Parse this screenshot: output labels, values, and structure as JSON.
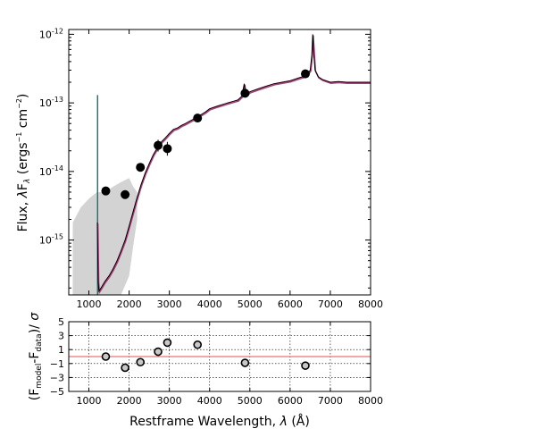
{
  "chart_data": [
    {
      "type": "line",
      "panel": "sed",
      "xlim": [
        500,
        8000
      ],
      "ylim_log10": [
        -15.8,
        -11.93
      ],
      "y_scale": "log",
      "xlabel": "",
      "ylabel": {
        "prefix": "Flux, ",
        "lambda": "λ",
        "F": "F",
        "sub": "λ",
        "units_open": " (ergs",
        "exp1": "−1",
        "cm": " cm",
        "exp2": "−2",
        "close": ")"
      },
      "x_ticks": [
        1000,
        2000,
        3000,
        4000,
        5000,
        6000,
        7000,
        8000
      ],
      "y_ticks": [
        {
          "base": "10",
          "exp": "-12",
          "log": -12
        },
        {
          "base": "10",
          "exp": "-13",
          "log": -13
        },
        {
          "base": "10",
          "exp": "-14",
          "log": -14
        },
        {
          "base": "10",
          "exp": "-15",
          "log": -15
        }
      ],
      "photometry": {
        "x": [
          1420,
          1900,
          2280,
          2720,
          2950,
          3700,
          4880,
          6380
        ],
        "y": [
          5.2e-15,
          4.6e-15,
          1.15e-14,
          2.4e-14,
          2.15e-14,
          6e-14,
          1.38e-13,
          2.65e-13
        ],
        "yerr_up": [
          0,
          0,
          0,
          5e-15,
          5.5e-15,
          0,
          0,
          0
        ],
        "yerr_down": [
          0,
          0,
          0,
          4.5e-15,
          4.5e-15,
          0,
          0,
          0
        ]
      },
      "model_spectrum": {
        "x": [
          1210,
          1230,
          1250,
          1300,
          1400,
          1500,
          1600,
          1700,
          1800,
          1900,
          2000,
          2100,
          2200,
          2300,
          2400,
          2500,
          2600,
          2700,
          2800,
          2900,
          3000,
          3100,
          3200,
          3300,
          3400,
          3500,
          3600,
          3700,
          3800,
          3900,
          4000,
          4200,
          4400,
          4600,
          4700,
          4800,
          4860,
          4900,
          5000,
          5200,
          5400,
          5600,
          5800,
          6000,
          6200,
          6400,
          6500,
          6540,
          6563,
          6590,
          6620,
          6700,
          6800,
          7000,
          7200,
          7400,
          7600,
          7800,
          8000
        ],
        "y": [
          1.8e-15,
          2.5e-16,
          1.8e-16,
          2e-16,
          2.5e-16,
          3e-16,
          3.8e-16,
          5e-16,
          7e-16,
          1e-15,
          1.6e-15,
          2.6e-15,
          4.2e-15,
          6.5e-15,
          9.5e-15,
          1.3e-14,
          1.75e-14,
          2.2e-14,
          2.7e-14,
          3.1e-14,
          3.6e-14,
          4.1e-14,
          4.3e-14,
          4.7e-14,
          5e-14,
          5.4e-14,
          5.8e-14,
          6.4e-14,
          6.8e-14,
          7.4e-14,
          8.2e-14,
          9e-14,
          9.8e-14,
          1.06e-13,
          1.1e-13,
          1.25e-13,
          1.9e-13,
          1.3e-13,
          1.45e-13,
          1.6e-13,
          1.75e-13,
          1.9e-13,
          2e-13,
          2.1e-13,
          2.3e-13,
          2.5e-13,
          3e-13,
          5e-13,
          1e-12,
          5e-13,
          3e-13,
          2.4e-13,
          2.2e-13,
          2e-13,
          2.05e-13,
          2e-13,
          2e-13,
          2e-13,
          2e-13
        ]
      },
      "observed_band": {
        "x": [
          600,
          800,
          1000,
          1200,
          1400,
          1600,
          1800,
          2000,
          2100,
          2200
        ],
        "lower": [
          1.6e-16,
          1.6e-16,
          1.6e-16,
          1.6e-16,
          1.6e-16,
          1.6e-16,
          1.6e-16,
          3e-16,
          8e-16,
          2e-15
        ],
        "upper": [
          1.8e-15,
          3e-15,
          4e-15,
          5e-15,
          5e-15,
          6e-15,
          7e-15,
          8e-15,
          6e-15,
          5e-15
        ]
      },
      "lya_line": {
        "x": 1216,
        "y_peak": 1.3e-13
      }
    },
    {
      "type": "scatter",
      "panel": "residuals",
      "xlim": [
        500,
        8000
      ],
      "ylim": [
        -5,
        5
      ],
      "xlabel": {
        "text": "Restframe Wavelength, ",
        "lambda": "λ",
        "units": " (Å)"
      },
      "ylabel": {
        "open": "(F",
        "sub1": "model",
        "dash": "-F",
        "sub2": "data",
        "close": ")/ ",
        "sigma": "σ"
      },
      "x_ticks": [
        1000,
        2000,
        3000,
        4000,
        5000,
        6000,
        7000,
        8000
      ],
      "y_ticks": [
        5,
        3,
        1,
        -1,
        -3,
        -5
      ],
      "grid": true,
      "x": [
        1420,
        1900,
        2280,
        2720,
        2950,
        3700,
        4880,
        6380
      ],
      "y": [
        0.0,
        -1.6,
        -0.8,
        0.7,
        2.0,
        1.7,
        -0.9,
        -1.3
      ],
      "zero_line": 0
    }
  ],
  "colors": {
    "points": "#000000",
    "model": "#000000",
    "model_shadow": "#b03a7a",
    "band": "#d3d3d3",
    "lya": "#1a6f6f",
    "zero_line": "#e05050",
    "resid_fill": "#c8c8c8"
  }
}
